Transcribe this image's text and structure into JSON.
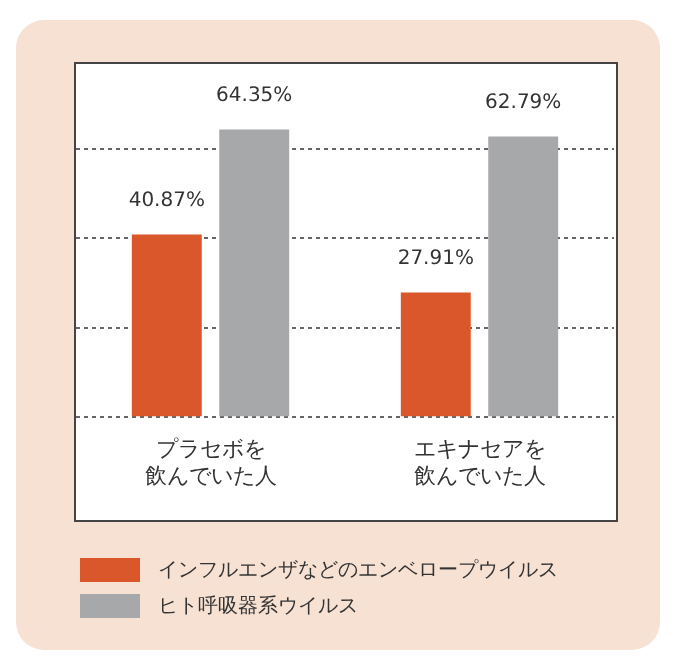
{
  "chart_data": {
    "type": "bar",
    "categories": [
      "プラセボを飲んでいた人",
      "エキナセアを飲んでいた人"
    ],
    "series": [
      {
        "name": "インフルエンザなどのエンベロープウイルス",
        "color": "#d9572b",
        "values": [
          40.87,
          27.91
        ],
        "value_labels": [
          "40.87%",
          "27.91%"
        ]
      },
      {
        "name": "ヒト呼吸器系ウイルス",
        "color": "#a7a8aa",
        "values": [
          64.35,
          62.79
        ],
        "value_labels": [
          "64.35%",
          "62.79%"
        ]
      }
    ],
    "ylim": [
      0,
      79
    ],
    "yticks": [
      {
        "value": 0,
        "label": null
      },
      {
        "value": 20,
        "label": null
      },
      {
        "value": 40,
        "label": null
      },
      {
        "value": 60,
        "label": null
      }
    ],
    "tick_labels": "x",
    "grid": "y",
    "legend": "bottom"
  }
}
